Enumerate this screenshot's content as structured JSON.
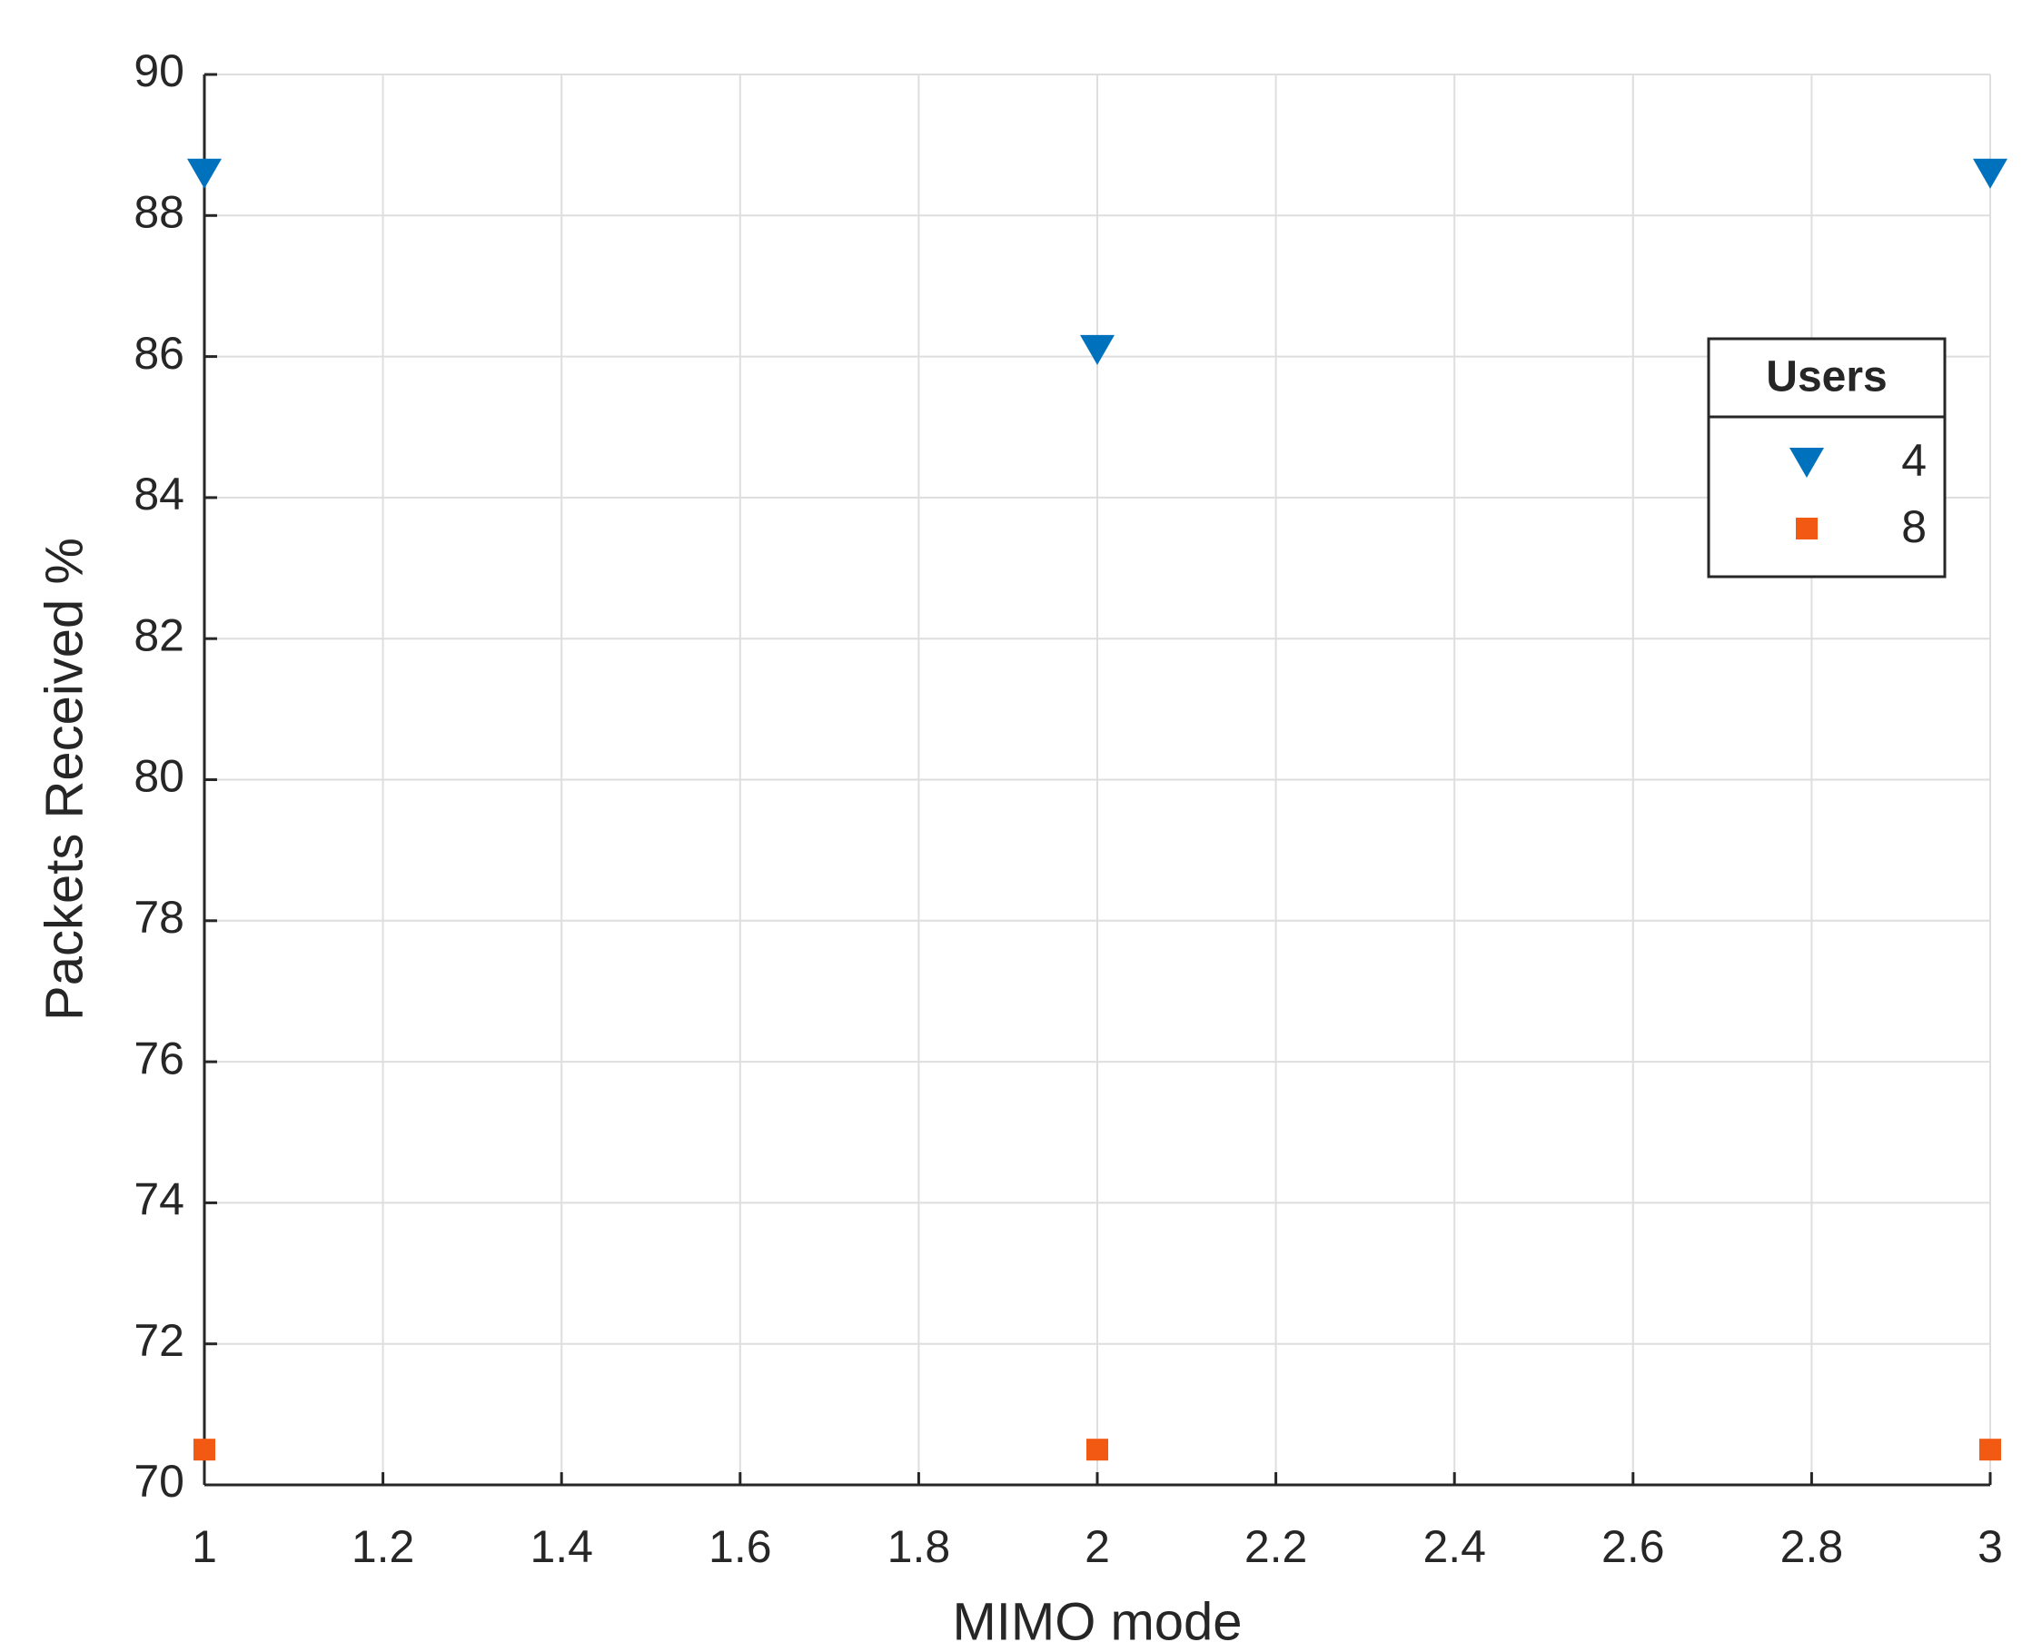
{
  "chart_data": {
    "type": "scatter",
    "xlabel": "MIMO mode",
    "ylabel": "Packets Received  %",
    "x": [
      1,
      2,
      3
    ],
    "series": [
      {
        "name": "4",
        "color": "#0072bd",
        "marker": "triangle-down",
        "values": [
          88.6,
          86.1,
          88.6
        ]
      },
      {
        "name": "8",
        "color": "#f25a14",
        "marker": "square",
        "values": [
          70.5,
          70.5,
          70.5
        ]
      }
    ],
    "xlim": [
      1,
      3
    ],
    "xticks": [
      1,
      1.2,
      1.4,
      1.6,
      1.8,
      2,
      2.2,
      2.4,
      2.6,
      2.8,
      3
    ],
    "ylim": [
      70,
      90
    ],
    "yticks": [
      70,
      72,
      74,
      76,
      78,
      80,
      82,
      84,
      86,
      88,
      90
    ],
    "grid": true,
    "legend_title": "Users",
    "legend_position": "east"
  }
}
